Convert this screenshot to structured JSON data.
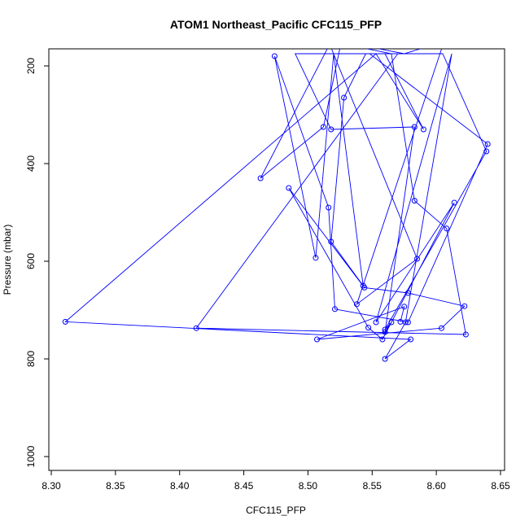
{
  "chart_data": {
    "type": "line",
    "title": "ATOM1 Northeast_Pacific CFC115_PFP",
    "xlabel": "CFC115_PFP",
    "ylabel": "Pressure (mbar)",
    "xlim": [
      8.3,
      8.65
    ],
    "ylim": [
      1000,
      180
    ],
    "y_reversed": true,
    "x_ticks": [
      8.3,
      8.35,
      8.4,
      8.45,
      8.5,
      8.55,
      8.6,
      8.65
    ],
    "x_tick_labels": [
      "8.30",
      "8.35",
      "8.40",
      "8.45",
      "8.50",
      "8.55",
      "8.60",
      "8.65"
    ],
    "y_ticks": [
      200,
      400,
      600,
      800,
      1000
    ],
    "y_tick_labels": [
      "200",
      "400",
      "600",
      "800",
      "1000"
    ],
    "grid": false,
    "colors": {
      "series": "#0000ff",
      "frame": "#000000"
    },
    "series": [
      {
        "color": "#0000ff",
        "x": [
          8.572,
          8.575,
          8.507,
          8.604,
          8.622,
          8.578,
          8.544,
          8.485,
          8.547,
          8.558,
          8.614,
          8.553,
          8.612,
          8.576,
          8.56,
          8.58,
          8.311,
          8.553,
          8.59,
          8.56,
          8.555,
          8.548,
          8.64,
          8.578,
          8.521,
          8.516,
          8.474,
          8.506,
          8.52,
          8.543,
          8.518,
          8.528,
          8.545,
          8.605,
          8.639,
          8.56,
          8.565,
          8.56,
          8.583,
          8.518,
          8.49,
          8.57,
          8.413,
          8.623,
          8.608,
          8.583,
          8.565,
          8.518,
          8.463,
          8.512,
          8.526,
          8.575,
          8.606,
          8.538,
          8.585,
          8.516,
          8.5
        ],
        "y": [
          724,
          693,
          760,
          737,
          692,
          665,
          654,
          450,
          736,
          760,
          480,
          725,
          175,
          725,
          800,
          760,
          724,
          175,
          330,
          175,
          175,
          175,
          360,
          725,
          698,
          490,
          180,
          593,
          175,
          650,
          560,
          265,
          175,
          175,
          375,
          740,
          725,
          745,
          325,
          330,
          175,
          175,
          737,
          750,
          533,
          476,
          175,
          150,
          430,
          325,
          150,
          175,
          150,
          688,
          595,
          150,
          150
        ]
      }
    ]
  }
}
